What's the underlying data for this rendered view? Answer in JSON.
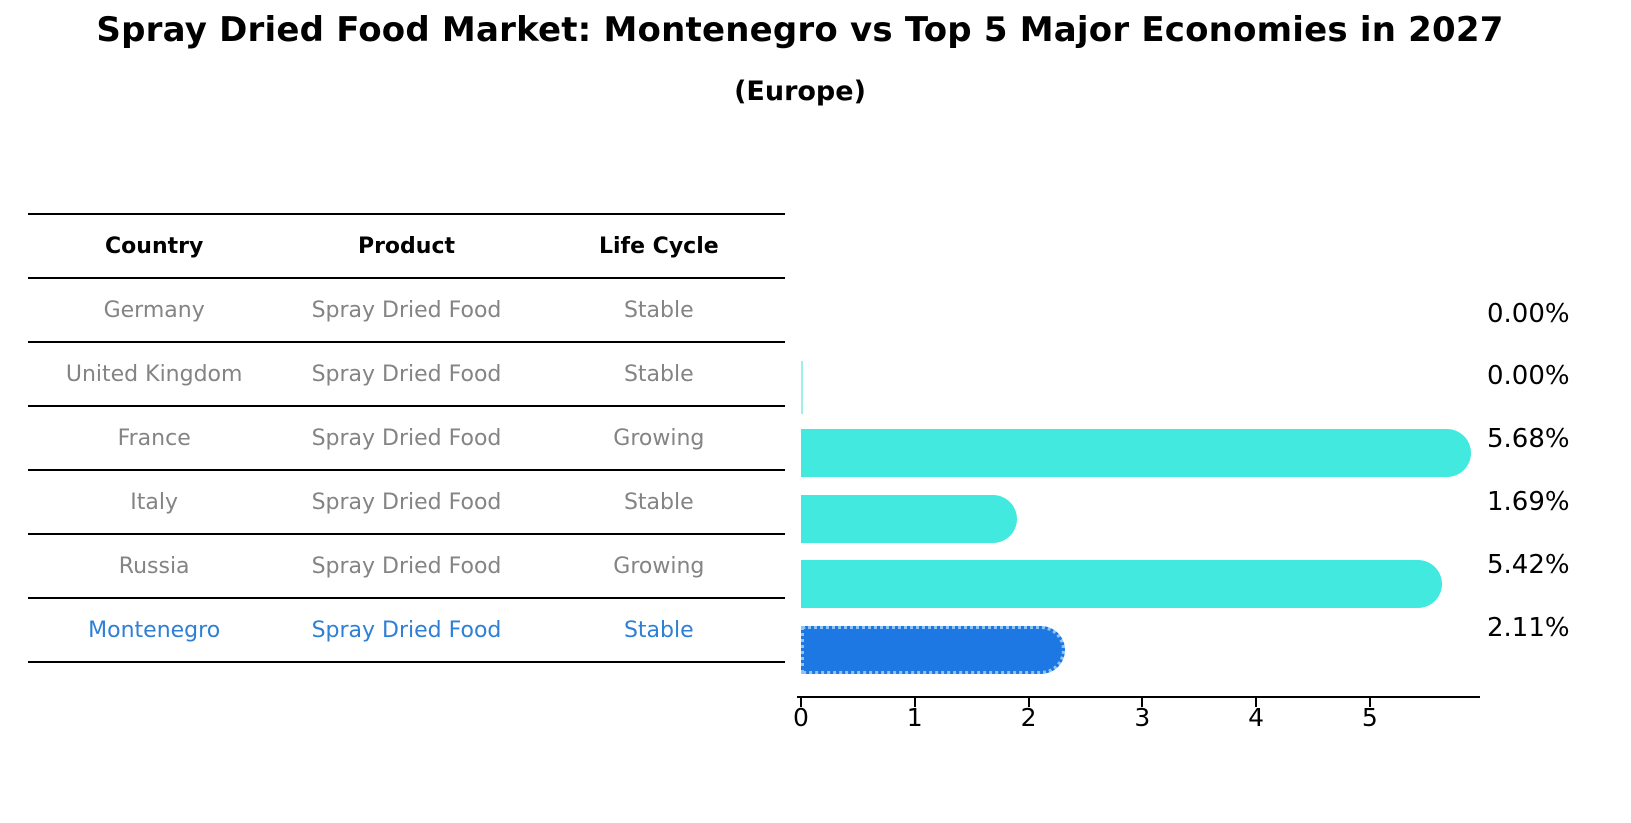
{
  "title": "Spray Dried Food Market: Montenegro vs Top 5 Major Economies in 2027",
  "subtitle": "(Europe)",
  "table": {
    "headers": [
      "Country",
      "Product",
      "Life Cycle"
    ],
    "rows": [
      {
        "country": "Germany",
        "product": "Spray Dried Food",
        "life_cycle": "Stable",
        "highlight": false
      },
      {
        "country": "United Kingdom",
        "product": "Spray Dried Food",
        "life_cycle": "Stable",
        "highlight": false
      },
      {
        "country": "France",
        "product": "Spray Dried Food",
        "life_cycle": "Growing",
        "highlight": false
      },
      {
        "country": "Italy",
        "product": "Spray Dried Food",
        "life_cycle": "Stable",
        "highlight": false
      },
      {
        "country": "Russia",
        "product": "Spray Dried Food",
        "life_cycle": "Growing",
        "highlight": true
      }
    ]
  },
  "montenegro_row": {
    "country": "Montenegro",
    "product": "Spray Dried Food",
    "life_cycle": "Stable"
  },
  "chart_data": {
    "type": "bar",
    "orientation": "horizontal",
    "categories": [
      "Germany",
      "United Kingdom",
      "France",
      "Italy",
      "Russia",
      "Montenegro"
    ],
    "values": [
      0.0,
      0.0,
      5.68,
      1.69,
      5.42,
      2.11
    ],
    "value_labels": [
      "0.00%",
      "0.00%",
      "5.68%",
      "1.69%",
      "5.42%",
      "2.11%"
    ],
    "title": "Spray Dried Food Market: Montenegro vs Top 5 Major Economies in 2027 (Europe)",
    "xlabel": "",
    "ylabel": "",
    "xlim": [
      0,
      5.96
    ],
    "xticks": [
      "0",
      "1",
      "2",
      "3",
      "4",
      "5"
    ],
    "grid": false,
    "legend": false,
    "highlight_index": 5,
    "bar_color": "#41e9df",
    "highlight_bar_color": "#1e78e3",
    "highlight_border_color": "#90c4f4",
    "highlight_text_color": "#2e7fd6",
    "table_text_color": "#848484",
    "axis_color": "#000000"
  }
}
